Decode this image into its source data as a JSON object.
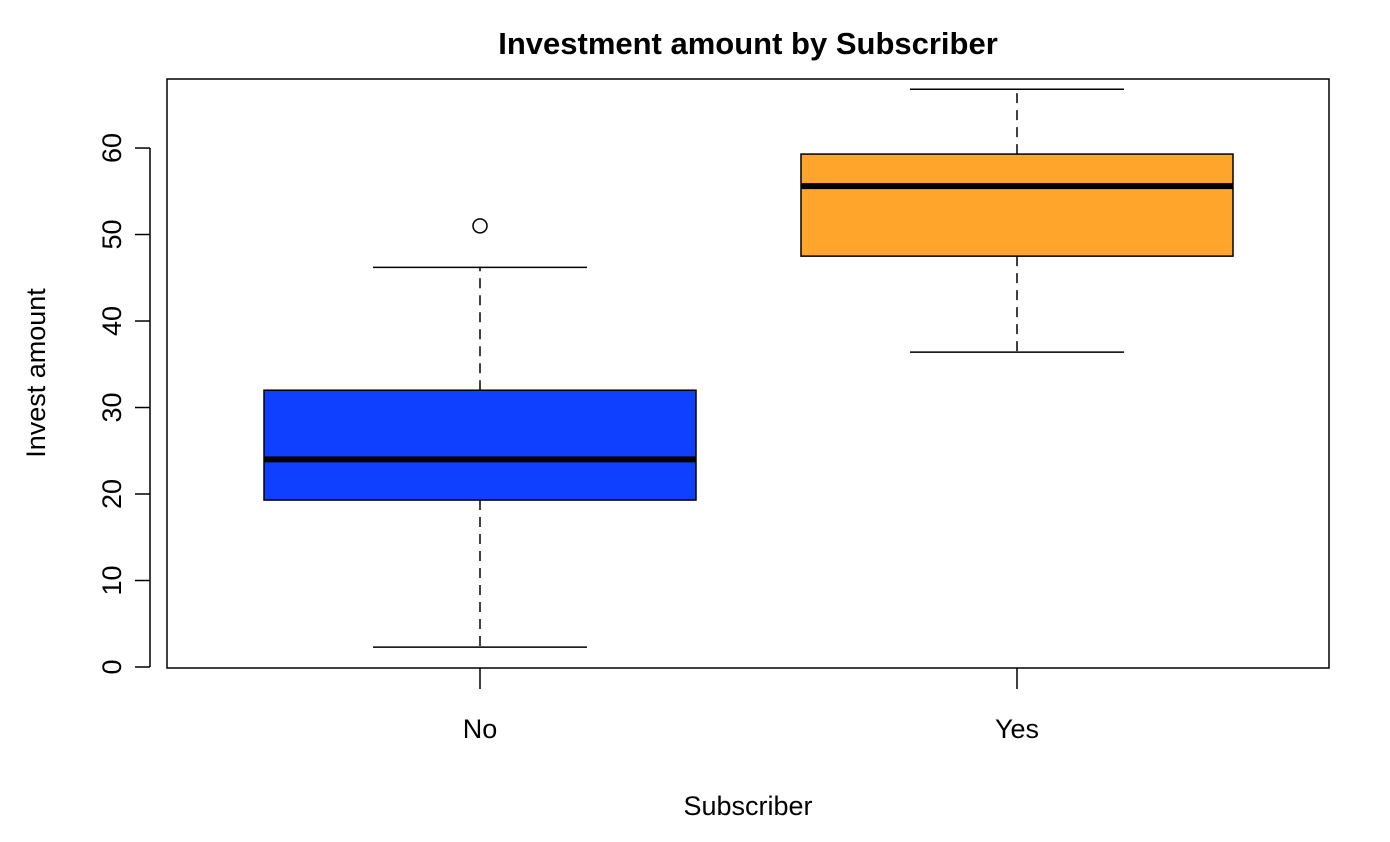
{
  "chart_data": {
    "type": "boxplot",
    "title": "Investment amount by Subscriber",
    "xlabel": "Subscriber",
    "ylabel": "Invest amount",
    "ylim": [
      0,
      68.5
    ],
    "yticks": [
      0,
      10,
      20,
      30,
      40,
      50,
      60
    ],
    "categories": [
      "No",
      "Yes"
    ],
    "boxes": [
      {
        "category": "No",
        "whisker_low": 2.3,
        "q1": 19.3,
        "median": 24.0,
        "q3": 32.0,
        "whisker_high": 46.2,
        "outliers": [
          51.0
        ],
        "color": "#1040FF"
      },
      {
        "category": "Yes",
        "whisker_low": 36.4,
        "q1": 47.5,
        "median": 55.6,
        "q3": 59.3,
        "whisker_high": 66.8,
        "outliers": [],
        "color": "#FFA52C"
      }
    ],
    "grid": false,
    "legend": "none"
  }
}
